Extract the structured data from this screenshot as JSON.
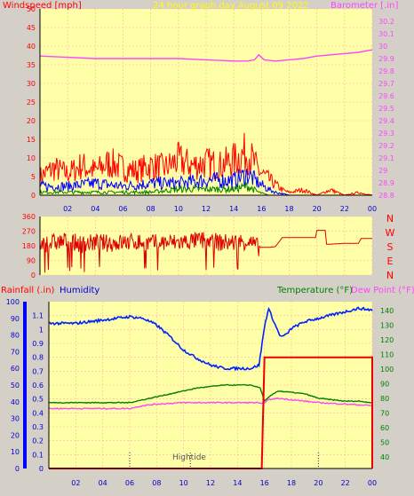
{
  "colors": {
    "background": "#d4d0c8",
    "plot_bg": "#ffffa8",
    "grid": "#ffb0b0",
    "wind": "#ff0000",
    "gust": "#0000ff",
    "wind_avg": "#008000",
    "barometer": "#ff44ff",
    "direction": "#dd0000",
    "rain": "#ee0000",
    "humidity": "#0022ff",
    "temperature": "#008000",
    "dewpoint": "#ff44ff",
    "axis_left": "#0000ff",
    "axis_right": "#008000"
  },
  "chart_data": [
    {
      "type": "line",
      "title": "24 hour graph day   August 09 2022",
      "left_label": "Windspeed [mph]",
      "right_label": "Barometer [.in]",
      "x_ticks": [
        "02",
        "04",
        "06",
        "08",
        "10",
        "12",
        "14",
        "16",
        "18",
        "20",
        "22",
        "00"
      ],
      "ylim_left": [
        0,
        50
      ],
      "yticks_left": [
        "0",
        "5",
        "10",
        "15",
        "20",
        "25",
        "30",
        "35",
        "40",
        "45",
        "50"
      ],
      "ylim_right": [
        28.8,
        30.3
      ],
      "yticks_right": [
        "28.8",
        "28.9",
        "29",
        "29.1",
        "29.2",
        "29.3",
        "29.4",
        "29.5",
        "29.6",
        "29.7",
        "29.8",
        "29.9",
        "30",
        "30.1",
        "30.2"
      ],
      "series": [
        {
          "key": "wind_gust",
          "values": [
            [
              0,
              7
            ],
            [
              1,
              10
            ],
            [
              2,
              8
            ],
            [
              3,
              11
            ],
            [
              4,
              9
            ],
            [
              5,
              12
            ],
            [
              6,
              10
            ],
            [
              7,
              9
            ],
            [
              8,
              11
            ],
            [
              9,
              10
            ],
            [
              10,
              13
            ],
            [
              11,
              11
            ],
            [
              12,
              12
            ],
            [
              13,
              11
            ],
            [
              14,
              13
            ],
            [
              15,
              16
            ],
            [
              15.8,
              9
            ],
            [
              16.5,
              6
            ],
            [
              17,
              4
            ],
            [
              17.5,
              2
            ],
            [
              18,
              1
            ],
            [
              19,
              2
            ],
            [
              20,
              0
            ],
            [
              21,
              2
            ],
            [
              22,
              0
            ],
            [
              23,
              1
            ],
            [
              24,
              0
            ]
          ]
        },
        {
          "key": "wind_avg",
          "values": [
            [
              0,
              3
            ],
            [
              2,
              3
            ],
            [
              4,
              4
            ],
            [
              6,
              3
            ],
            [
              8,
              4
            ],
            [
              10,
              4
            ],
            [
              12,
              5
            ],
            [
              14,
              5
            ],
            [
              15,
              7
            ],
            [
              15.8,
              4
            ],
            [
              16.5,
              2
            ],
            [
              17,
              1
            ],
            [
              18,
              0
            ],
            [
              24,
              0
            ]
          ]
        },
        {
          "key": "wind_low",
          "values": [
            [
              0,
              1
            ],
            [
              2,
              1
            ],
            [
              4,
              1
            ],
            [
              6,
              1
            ],
            [
              8,
              1
            ],
            [
              10,
              2
            ],
            [
              12,
              2
            ],
            [
              14,
              2
            ],
            [
              15,
              3
            ],
            [
              15.8,
              1
            ],
            [
              16.5,
              0
            ],
            [
              24,
              0
            ]
          ]
        },
        {
          "key": "barometer",
          "values": [
            [
              0,
              29.92
            ],
            [
              2,
              29.91
            ],
            [
              4,
              29.9
            ],
            [
              6,
              29.9
            ],
            [
              8,
              29.9
            ],
            [
              10,
              29.9
            ],
            [
              12,
              29.89
            ],
            [
              14,
              29.88
            ],
            [
              15,
              29.88
            ],
            [
              15.5,
              29.89
            ],
            [
              15.8,
              29.93
            ],
            [
              16.2,
              29.89
            ],
            [
              17,
              29.88
            ],
            [
              18,
              29.89
            ],
            [
              19,
              29.9
            ],
            [
              20,
              29.92
            ],
            [
              21,
              29.93
            ],
            [
              22,
              29.94
            ],
            [
              23,
              29.95
            ],
            [
              24,
              29.97
            ]
          ]
        }
      ]
    },
    {
      "type": "line",
      "title": "",
      "ylim": [
        0,
        360
      ],
      "yticks": [
        "0",
        "90",
        "180",
        "270",
        "360"
      ],
      "direction_labels": [
        "N",
        "W",
        "S",
        "E",
        "N"
      ],
      "x_ticks": [
        "02",
        "04",
        "06",
        "08",
        "10",
        "12",
        "14",
        "16",
        "18",
        "20",
        "22",
        "00"
      ],
      "series": [
        {
          "key": "direction",
          "values": [
            [
              0,
              190
            ],
            [
              1,
              200
            ],
            [
              2,
              210
            ],
            [
              3,
              190
            ],
            [
              4,
              200
            ],
            [
              5,
              195
            ],
            [
              6,
              200
            ],
            [
              7,
              205
            ],
            [
              8,
              195
            ],
            [
              9,
              200
            ],
            [
              10,
              200
            ],
            [
              11,
              210
            ],
            [
              12,
              215
            ],
            [
              13,
              200
            ],
            [
              14,
              200
            ],
            [
              15,
              210
            ],
            [
              15.8,
              170
            ],
            [
              16.5,
              170
            ],
            [
              17,
              175
            ],
            [
              17.5,
              230
            ],
            [
              18,
              230
            ],
            [
              19,
              230
            ],
            [
              19.9,
              230
            ],
            [
              20,
              275
            ],
            [
              20.6,
              275
            ],
            [
              20.7,
              190
            ],
            [
              21,
              190
            ],
            [
              22,
              195
            ],
            [
              23,
              195
            ],
            [
              23.2,
              225
            ],
            [
              24,
              225
            ]
          ]
        }
      ]
    },
    {
      "type": "line",
      "left_label": "Rainfall (.in)",
      "left_label2": "Humidity",
      "right_label": "Temperature (°F)",
      "right_label2": "Dew Point (°F)",
      "annotation": "Hightide",
      "x_ticks": [
        "02",
        "04",
        "06",
        "08",
        "10",
        "12",
        "14",
        "16",
        "18",
        "20",
        "22",
        "00"
      ],
      "ylim_rain": [
        0,
        1.2
      ],
      "yticks_rain": [
        "0",
        "0.1",
        "0.2",
        "0.3",
        "0.4",
        "0.5",
        "0.6",
        "0.7",
        "0.8",
        "0.9",
        "1",
        "1.1"
      ],
      "ylim_hum": [
        0,
        100
      ],
      "yticks_hum": [
        "0",
        "10",
        "20",
        "30",
        "40",
        "50",
        "60",
        "70",
        "80",
        "90",
        "100"
      ],
      "ylim_temp": [
        32,
        146
      ],
      "yticks_temp": [
        "40",
        "50",
        "60",
        "70",
        "80",
        "90",
        "100",
        "110",
        "120",
        "130",
        "140"
      ],
      "series": [
        {
          "key": "humidity",
          "values": [
            [
              0,
              87
            ],
            [
              2,
              87
            ],
            [
              4,
              89
            ],
            [
              5,
              90
            ],
            [
              6,
              91
            ],
            [
              7,
              90
            ],
            [
              8,
              86
            ],
            [
              9,
              79
            ],
            [
              10,
              71
            ],
            [
              11,
              66
            ],
            [
              12,
              62
            ],
            [
              13,
              60
            ],
            [
              14,
              60
            ],
            [
              15,
              60
            ],
            [
              15.6,
              62
            ],
            [
              16,
              85
            ],
            [
              16.3,
              96
            ],
            [
              16.8,
              86
            ],
            [
              17.2,
              79
            ],
            [
              17.6,
              80
            ],
            [
              18,
              84
            ],
            [
              19,
              88
            ],
            [
              20,
              90
            ],
            [
              21,
              92
            ],
            [
              22,
              94
            ],
            [
              23,
              96
            ],
            [
              24,
              95
            ]
          ]
        },
        {
          "key": "temperature",
          "values": [
            [
              0,
              77
            ],
            [
              2,
              77
            ],
            [
              4,
              77
            ],
            [
              6,
              77
            ],
            [
              7,
              79
            ],
            [
              8,
              81
            ],
            [
              9,
              83
            ],
            [
              10,
              85
            ],
            [
              11,
              87
            ],
            [
              12,
              88
            ],
            [
              13,
              89
            ],
            [
              14,
              89
            ],
            [
              15,
              89
            ],
            [
              15.7,
              87
            ],
            [
              16,
              78
            ],
            [
              16.5,
              82
            ],
            [
              17,
              85
            ],
            [
              18,
              84
            ],
            [
              19,
              83
            ],
            [
              20,
              80
            ],
            [
              21,
              79
            ],
            [
              22,
              78
            ],
            [
              23,
              78
            ],
            [
              24,
              77
            ]
          ]
        },
        {
          "key": "dewpoint",
          "values": [
            [
              0,
              73
            ],
            [
              2,
              73
            ],
            [
              4,
              73
            ],
            [
              6,
              73
            ],
            [
              7,
              75
            ],
            [
              8,
              76
            ],
            [
              10,
              77
            ],
            [
              12,
              77
            ],
            [
              14,
              77
            ],
            [
              15.5,
              77
            ],
            [
              15.8,
              76
            ],
            [
              16.3,
              79
            ],
            [
              17,
              80
            ],
            [
              18,
              79
            ],
            [
              19,
              78
            ],
            [
              20,
              77
            ],
            [
              22,
              76
            ],
            [
              24,
              75
            ]
          ]
        },
        {
          "key": "rainfall",
          "values": [
            [
              0,
              0
            ],
            [
              15.8,
              0
            ],
            [
              16,
              0.8
            ],
            [
              24,
              0.8
            ],
            [
              24.1,
              0
            ]
          ]
        }
      ]
    }
  ]
}
